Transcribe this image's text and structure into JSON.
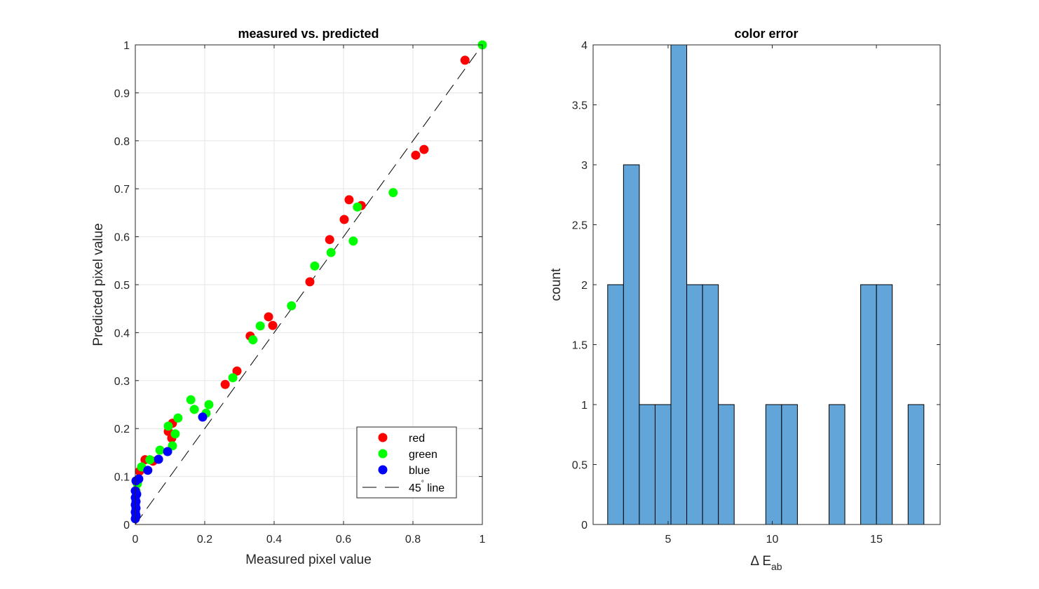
{
  "chart_data": [
    {
      "type": "scatter",
      "title": "measured vs. predicted",
      "xlabel": "Measured pixel value",
      "ylabel": "Predicted pixel value",
      "xlim": [
        0,
        1
      ],
      "ylim": [
        0,
        1
      ],
      "xticks": [
        "0",
        "0.2",
        "0.4",
        "0.6",
        "0.8",
        "1"
      ],
      "yticks": [
        "0",
        "0.1",
        "0.2",
        "0.3",
        "0.4",
        "0.5",
        "0.6",
        "0.7",
        "0.8",
        "0.9",
        "1"
      ],
      "grid": true,
      "legend_position": "bottom-right",
      "series": [
        {
          "name": "red",
          "color": "#ff0000",
          "points": [
            [
              0.95,
              0.968
            ],
            [
              0.832,
              0.782
            ],
            [
              0.808,
              0.77
            ],
            [
              0.616,
              0.677
            ],
            [
              0.651,
              0.665
            ],
            [
              0.602,
              0.636
            ],
            [
              0.56,
              0.594
            ],
            [
              0.503,
              0.506
            ],
            [
              0.384,
              0.433
            ],
            [
              0.396,
              0.415
            ],
            [
              0.331,
              0.393
            ],
            [
              0.293,
              0.32
            ],
            [
              0.259,
              0.292
            ],
            [
              0.107,
              0.211
            ],
            [
              0.095,
              0.194
            ],
            [
              0.105,
              0.18
            ],
            [
              0.028,
              0.135
            ],
            [
              0.051,
              0.132
            ],
            [
              0.012,
              0.111
            ],
            [
              0.004,
              0.088
            ]
          ]
        },
        {
          "name": "green",
          "color": "#00ff00",
          "points": [
            [
              1.0,
              1.0
            ],
            [
              0.743,
              0.692
            ],
            [
              0.64,
              0.662
            ],
            [
              0.628,
              0.591
            ],
            [
              0.564,
              0.567
            ],
            [
              0.517,
              0.539
            ],
            [
              0.45,
              0.456
            ],
            [
              0.36,
              0.414
            ],
            [
              0.339,
              0.385
            ],
            [
              0.281,
              0.306
            ],
            [
              0.16,
              0.26
            ],
            [
              0.17,
              0.24
            ],
            [
              0.212,
              0.25
            ],
            [
              0.204,
              0.232
            ],
            [
              0.123,
              0.222
            ],
            [
              0.095,
              0.205
            ],
            [
              0.115,
              0.189
            ],
            [
              0.107,
              0.164
            ],
            [
              0.071,
              0.155
            ],
            [
              0.042,
              0.135
            ],
            [
              0.018,
              0.12
            ],
            [
              0.006,
              0.085
            ],
            [
              0.002,
              0.07
            ]
          ]
        },
        {
          "name": "blue",
          "color": "#0000ff",
          "points": [
            [
              0.194,
              0.224
            ],
            [
              0.093,
              0.152
            ],
            [
              0.067,
              0.136
            ],
            [
              0.036,
              0.113
            ],
            [
              0.01,
              0.095
            ],
            [
              0.002,
              0.091
            ],
            [
              0.004,
              0.063
            ],
            [
              0.0,
              0.07
            ],
            [
              0.0,
              0.056
            ],
            [
              0.002,
              0.048
            ],
            [
              0.0,
              0.041
            ],
            [
              0.002,
              0.034
            ],
            [
              0.0,
              0.026
            ],
            [
              0.002,
              0.019
            ],
            [
              0.0,
              0.012
            ]
          ]
        }
      ],
      "reference_line": {
        "name": "45° line",
        "label_main": "45",
        "label_sup": "°",
        "label_rest": " line",
        "from": [
          0,
          0
        ],
        "to": [
          1,
          1
        ]
      }
    },
    {
      "type": "bar",
      "subtype": "histogram",
      "title": "color error",
      "xlabel_main": "Δ E",
      "xlabel_sub": "ab",
      "ylabel": "count",
      "xlim": [
        1.4,
        18.06
      ],
      "ylim": [
        0,
        4
      ],
      "xticks": [
        5,
        10,
        15
      ],
      "xtick_labels": [
        "5",
        "10",
        "15"
      ],
      "yticks": [
        0,
        0.5,
        1,
        1.5,
        2,
        2.5,
        3,
        3.5,
        4
      ],
      "ytick_labels": [
        "0",
        "0.5",
        "1",
        "1.5",
        "2",
        "2.5",
        "3",
        "3.5",
        "4"
      ],
      "bin_start": 2.1,
      "bin_width": 0.759,
      "counts": [
        2,
        3,
        1,
        1,
        4,
        2,
        2,
        1,
        0,
        0,
        1,
        1,
        0,
        0,
        1,
        0,
        2,
        2,
        0,
        1
      ],
      "color": "#62a5d8"
    }
  ]
}
